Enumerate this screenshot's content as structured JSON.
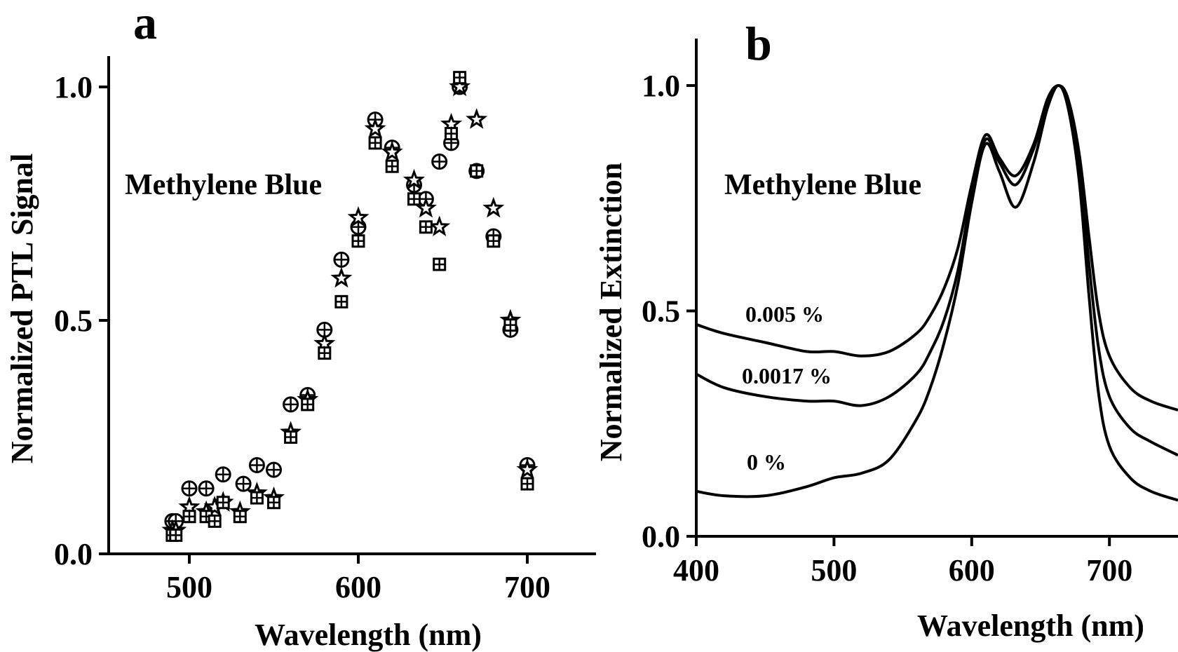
{
  "chart_data": [
    {
      "type": "scatter",
      "panel_label": "a",
      "xlabel": "Wavelength (nm)",
      "ylabel": "Normalized PTL Signal",
      "annotation": "Methylene Blue",
      "xlim": [
        450,
        750
      ],
      "ylim": [
        0,
        1.1
      ],
      "xticks": [
        500,
        600,
        700
      ],
      "yticks": [
        0.0,
        0.5,
        1.0
      ],
      "xtick_labels": [
        "500",
        "600",
        "700"
      ],
      "ytick_labels": [
        "0.0",
        "0.5",
        "1.0"
      ],
      "grid": false,
      "series": [
        {
          "marker": "circle-plus",
          "points": [
            [
              490,
              0.07
            ],
            [
              492,
              0.07
            ],
            [
              500,
              0.14
            ],
            [
              510,
              0.14
            ],
            [
              520,
              0.17
            ],
            [
              532,
              0.15
            ],
            [
              540,
              0.19
            ],
            [
              550,
              0.18
            ],
            [
              560,
              0.32
            ],
            [
              570,
              0.34
            ],
            [
              580,
              0.48
            ],
            [
              590,
              0.63
            ],
            [
              600,
              0.7
            ],
            [
              610,
              0.93
            ],
            [
              620,
              0.87
            ],
            [
              633,
              0.79
            ],
            [
              640,
              0.76
            ],
            [
              648,
              0.84
            ],
            [
              655,
              0.88
            ],
            [
              660,
              1.0
            ],
            [
              670,
              0.82
            ],
            [
              680,
              0.68
            ],
            [
              690,
              0.48
            ],
            [
              700,
              0.19
            ]
          ]
        },
        {
          "marker": "star",
          "points": [
            [
              490,
              0.05
            ],
            [
              492,
              0.05
            ],
            [
              500,
              0.1
            ],
            [
              510,
              0.09
            ],
            [
              515,
              0.1
            ],
            [
              520,
              0.11
            ],
            [
              530,
              0.09
            ],
            [
              540,
              0.13
            ],
            [
              550,
              0.12
            ],
            [
              560,
              0.26
            ],
            [
              570,
              0.33
            ],
            [
              580,
              0.45
            ],
            [
              590,
              0.59
            ],
            [
              600,
              0.72
            ],
            [
              610,
              0.91
            ],
            [
              620,
              0.86
            ],
            [
              633,
              0.8
            ],
            [
              640,
              0.74
            ],
            [
              648,
              0.7
            ],
            [
              655,
              0.92
            ],
            [
              660,
              1.0
            ],
            [
              670,
              0.93
            ],
            [
              680,
              0.74
            ],
            [
              690,
              0.5
            ],
            [
              700,
              0.18
            ]
          ]
        },
        {
          "marker": "square-plus",
          "points": [
            [
              490,
              0.04
            ],
            [
              492,
              0.04
            ],
            [
              500,
              0.08
            ],
            [
              510,
              0.08
            ],
            [
              515,
              0.07
            ],
            [
              520,
              0.11
            ],
            [
              530,
              0.08
            ],
            [
              540,
              0.12
            ],
            [
              550,
              0.11
            ],
            [
              560,
              0.25
            ],
            [
              570,
              0.32
            ],
            [
              580,
              0.43
            ],
            [
              590,
              0.54
            ],
            [
              600,
              0.67
            ],
            [
              610,
              0.88
            ],
            [
              620,
              0.83
            ],
            [
              633,
              0.76
            ],
            [
              640,
              0.7
            ],
            [
              648,
              0.62
            ],
            [
              655,
              0.9
            ],
            [
              660,
              1.02
            ],
            [
              670,
              0.82
            ],
            [
              680,
              0.67
            ],
            [
              690,
              0.49
            ],
            [
              700,
              0.15
            ]
          ]
        }
      ]
    },
    {
      "type": "line",
      "panel_label": "b",
      "xlabel": "Wavelength (nm)",
      "ylabel": "Normalized Extinction",
      "annotation": "Methylene Blue",
      "xlim": [
        400,
        750
      ],
      "ylim": [
        0,
        1.1
      ],
      "xticks": [
        400,
        500,
        600,
        700
      ],
      "yticks": [
        0.0,
        0.5,
        1.0
      ],
      "xtick_labels": [
        "400",
        "500",
        "600",
        "700"
      ],
      "ytick_labels": [
        "0.0",
        "0.5",
        "1.0"
      ],
      "grid": false,
      "series": [
        {
          "name": "0.005 %",
          "x": [
            400,
            420,
            450,
            480,
            500,
            520,
            540,
            560,
            570,
            580,
            590,
            600,
            610,
            620,
            632,
            645,
            655,
            663,
            670,
            678,
            685,
            692,
            700,
            715,
            730,
            750
          ],
          "y": [
            0.47,
            0.45,
            0.43,
            0.41,
            0.41,
            0.4,
            0.41,
            0.45,
            0.49,
            0.55,
            0.64,
            0.78,
            0.89,
            0.84,
            0.8,
            0.87,
            0.97,
            1.0,
            0.97,
            0.85,
            0.67,
            0.5,
            0.4,
            0.33,
            0.3,
            0.28
          ]
        },
        {
          "name": "0.0017 %",
          "x": [
            400,
            420,
            450,
            480,
            500,
            520,
            540,
            560,
            570,
            580,
            590,
            600,
            610,
            620,
            632,
            645,
            655,
            663,
            670,
            678,
            685,
            692,
            700,
            715,
            730,
            750
          ],
          "y": [
            0.36,
            0.33,
            0.31,
            0.3,
            0.3,
            0.29,
            0.31,
            0.36,
            0.41,
            0.48,
            0.59,
            0.76,
            0.88,
            0.83,
            0.78,
            0.86,
            0.96,
            1.0,
            0.96,
            0.83,
            0.61,
            0.42,
            0.31,
            0.24,
            0.21,
            0.18
          ]
        },
        {
          "name": "0 %",
          "x": [
            400,
            420,
            450,
            480,
            500,
            520,
            540,
            560,
            570,
            580,
            590,
            600,
            610,
            620,
            632,
            645,
            655,
            663,
            670,
            678,
            685,
            692,
            700,
            715,
            730,
            750
          ],
          "y": [
            0.1,
            0.09,
            0.09,
            0.11,
            0.13,
            0.14,
            0.17,
            0.26,
            0.33,
            0.43,
            0.56,
            0.74,
            0.87,
            0.81,
            0.73,
            0.83,
            0.95,
            1.0,
            0.95,
            0.79,
            0.54,
            0.32,
            0.2,
            0.13,
            0.1,
            0.08
          ]
        }
      ]
    }
  ]
}
